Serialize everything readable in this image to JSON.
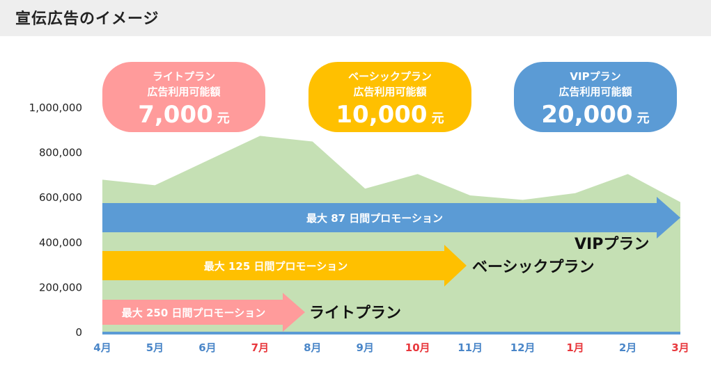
{
  "page": {
    "title": "宣伝広告のイメージ"
  },
  "chart_data": {
    "type": "area",
    "categories": [
      "4月",
      "5月",
      "6月",
      "7月",
      "8月",
      "9月",
      "10月",
      "11月",
      "12月",
      "1月",
      "2月",
      "3月"
    ],
    "values": [
      680000,
      655000,
      765000,
      875000,
      850000,
      640000,
      705000,
      610000,
      590000,
      620000,
      705000,
      580000
    ],
    "ylim": [
      0,
      1000000
    ],
    "yticks": [
      "0",
      "200,000",
      "400,000",
      "600,000",
      "800,000",
      "1,000,000"
    ],
    "ytick_values": [
      0,
      200000,
      400000,
      600000,
      800000,
      1000000
    ],
    "xtick_colors": [
      "#4a86c8",
      "#4a86c8",
      "#4a86c8",
      "#e8383d",
      "#4a86c8",
      "#4a86c8",
      "#e8383d",
      "#4a86c8",
      "#4a86c8",
      "#e8383d",
      "#4a86c8",
      "#e8383d"
    ],
    "area_color": "#c5e0b4",
    "baseline_color": "#5b9bd5",
    "xlabel": "",
    "ylabel": "",
    "grid": false
  },
  "plans": [
    {
      "name": "VIPプラン",
      "arrow_label": "最大 87 日間プロモーション",
      "color": "#5b9bd5",
      "days": 87
    },
    {
      "name": "ベーシックプラン",
      "arrow_label": "最大 125 日間プロモーション",
      "color": "#ffc000",
      "days": 125
    },
    {
      "name": "ライトプラン",
      "arrow_label": "最大 250 日間プロモーション",
      "color": "#ff9b9b",
      "days": 250
    }
  ],
  "bubbles": [
    {
      "line1": "ライトプラン",
      "line2": "広告利用可能額",
      "amount": "7,000",
      "unit": "元",
      "color": "#ff9b9b"
    },
    {
      "line1": "ベーシックプラン",
      "line2": "広告利用可能額",
      "amount": "10,000",
      "unit": "元",
      "color": "#ffc000"
    },
    {
      "line1": "VIPプラン",
      "line2": "広告利用可能額",
      "amount": "20,000",
      "unit": "元",
      "color": "#5b9bd5"
    }
  ]
}
